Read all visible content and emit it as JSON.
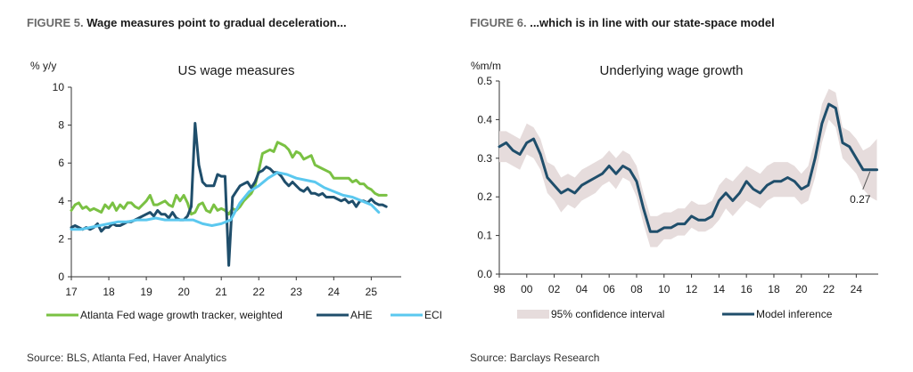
{
  "figures": [
    {
      "number": "FIGURE 5.",
      "title": "Wage measures point to gradual deceleration...",
      "source": "Source: BLS, Atlanta Fed, Haver Analytics"
    },
    {
      "number": "FIGURE 6.",
      "title": "...which is in line with our state-space model",
      "source": "Source: Barclays Research"
    }
  ],
  "colors": {
    "green": "#7ac143",
    "navy": "#1f4e6b",
    "lightblue": "#5bc8ef",
    "band": "#e6dcdc",
    "axis": "#333333"
  },
  "chart_data": [
    {
      "type": "line",
      "title": "US wage measures",
      "ylabel": "% y/y",
      "xlabel": "",
      "xlim": [
        17,
        25.8
      ],
      "ylim": [
        0,
        10
      ],
      "xticks": [
        17,
        18,
        19,
        20,
        21,
        22,
        23,
        24,
        25
      ],
      "xtick_labels": [
        "17",
        "18",
        "19",
        "20",
        "21",
        "22",
        "23",
        "24",
        "25"
      ],
      "yticks": [
        0,
        2,
        4,
        6,
        8,
        10
      ],
      "ytick_labels": [
        "0",
        "2",
        "4",
        "6",
        "8",
        "10"
      ],
      "legend": "bottom",
      "series": [
        {
          "name": "Atlanta Fed wage growth tracker, weighted",
          "color": "#7ac143",
          "x": [
            17.0,
            17.1,
            17.2,
            17.3,
            17.4,
            17.5,
            17.6,
            17.7,
            17.8,
            17.9,
            18.0,
            18.1,
            18.2,
            18.3,
            18.4,
            18.5,
            18.6,
            18.7,
            18.8,
            18.9,
            19.0,
            19.1,
            19.2,
            19.3,
            19.4,
            19.5,
            19.6,
            19.7,
            19.8,
            19.9,
            20.0,
            20.1,
            20.2,
            20.3,
            20.4,
            20.5,
            20.6,
            20.7,
            20.8,
            20.9,
            21.0,
            21.1,
            21.2,
            21.3,
            21.4,
            21.5,
            21.6,
            21.7,
            21.8,
            21.9,
            22.0,
            22.1,
            22.2,
            22.3,
            22.4,
            22.5,
            22.6,
            22.7,
            22.8,
            22.9,
            23.0,
            23.1,
            23.2,
            23.3,
            23.4,
            23.5,
            23.6,
            23.7,
            23.8,
            23.9,
            24.0,
            24.1,
            24.2,
            24.3,
            24.4,
            24.5,
            24.6,
            24.7,
            24.8,
            24.9,
            25.0,
            25.1,
            25.2,
            25.3,
            25.4
          ],
          "y": [
            3.5,
            3.8,
            3.9,
            3.6,
            3.7,
            3.5,
            3.6,
            3.5,
            3.4,
            3.8,
            3.6,
            3.9,
            3.5,
            3.8,
            3.6,
            3.9,
            3.9,
            3.7,
            3.6,
            3.8,
            4.0,
            4.3,
            3.8,
            3.8,
            3.9,
            4.0,
            3.8,
            3.7,
            4.3,
            4.0,
            4.3,
            3.9,
            3.3,
            3.4,
            3.8,
            3.9,
            3.5,
            3.4,
            3.8,
            3.5,
            3.6,
            3.5,
            3.3,
            3.6,
            3.5,
            3.7,
            4.0,
            4.2,
            4.4,
            4.8,
            5.6,
            6.5,
            6.6,
            6.7,
            6.6,
            7.1,
            7.0,
            6.9,
            6.7,
            6.3,
            6.6,
            6.5,
            6.2,
            6.3,
            6.4,
            5.9,
            5.8,
            5.7,
            5.6,
            5.5,
            5.2,
            5.2,
            5.2,
            5.2,
            5.2,
            5.0,
            5.1,
            4.9,
            4.9,
            4.7,
            4.6,
            4.4,
            4.3,
            4.3,
            4.3
          ]
        },
        {
          "name": "AHE",
          "color": "#1f4e6b",
          "x": [
            17.0,
            17.1,
            17.2,
            17.3,
            17.4,
            17.5,
            17.6,
            17.7,
            17.8,
            17.9,
            18.0,
            18.1,
            18.2,
            18.3,
            18.4,
            18.5,
            18.6,
            18.7,
            18.8,
            18.9,
            19.0,
            19.1,
            19.2,
            19.3,
            19.4,
            19.5,
            19.6,
            19.7,
            19.8,
            19.9,
            20.0,
            20.1,
            20.2,
            20.3,
            20.4,
            20.5,
            20.6,
            20.7,
            20.8,
            20.9,
            21.0,
            21.1,
            21.2,
            21.3,
            21.4,
            21.5,
            21.6,
            21.7,
            21.8,
            21.9,
            22.0,
            22.1,
            22.2,
            22.3,
            22.4,
            22.5,
            22.6,
            22.7,
            22.8,
            22.9,
            23.0,
            23.1,
            23.2,
            23.3,
            23.4,
            23.5,
            23.6,
            23.7,
            23.8,
            23.9,
            24.0,
            24.1,
            24.2,
            24.3,
            24.4,
            24.5,
            24.6,
            24.7,
            24.8,
            24.9,
            25.0,
            25.1,
            25.2,
            25.3,
            25.4
          ],
          "y": [
            2.6,
            2.7,
            2.6,
            2.5,
            2.6,
            2.5,
            2.6,
            2.8,
            2.4,
            2.6,
            2.6,
            2.8,
            2.7,
            2.7,
            2.8,
            2.9,
            2.9,
            3.0,
            3.1,
            3.2,
            3.3,
            3.4,
            3.2,
            3.5,
            3.3,
            3.3,
            3.1,
            3.4,
            3.1,
            3.0,
            3.0,
            3.2,
            3.7,
            8.1,
            5.9,
            5.0,
            4.8,
            4.8,
            4.8,
            5.4,
            5.3,
            5.3,
            0.6,
            4.2,
            4.5,
            4.8,
            4.9,
            5.0,
            4.7,
            5.0,
            5.5,
            5.6,
            5.8,
            5.7,
            5.5,
            5.5,
            5.3,
            5.0,
            4.8,
            5.0,
            4.8,
            4.6,
            4.5,
            4.7,
            4.4,
            4.4,
            4.3,
            4.4,
            4.2,
            4.2,
            4.2,
            4.1,
            4.0,
            4.1,
            3.9,
            4.0,
            3.7,
            4.0,
            4.0,
            3.9,
            4.1,
            3.9,
            3.8,
            3.8,
            3.7
          ]
        },
        {
          "name": "ECI",
          "color": "#5bc8ef",
          "x": [
            17.0,
            17.25,
            17.5,
            17.75,
            18.0,
            18.25,
            18.5,
            18.75,
            19.0,
            19.25,
            19.5,
            19.75,
            20.0,
            20.25,
            20.5,
            20.75,
            21.0,
            21.25,
            21.5,
            21.75,
            22.0,
            22.25,
            22.5,
            22.75,
            23.0,
            23.25,
            23.5,
            23.75,
            24.0,
            24.25,
            24.5,
            24.75,
            25.0,
            25.2
          ],
          "y": [
            2.5,
            2.5,
            2.6,
            2.7,
            2.8,
            2.9,
            2.9,
            3.0,
            3.0,
            3.1,
            3.0,
            3.0,
            3.0,
            3.0,
            2.8,
            2.7,
            2.8,
            3.0,
            3.9,
            4.5,
            4.8,
            5.2,
            5.5,
            5.4,
            5.2,
            5.1,
            5.0,
            4.7,
            4.5,
            4.3,
            4.2,
            4.0,
            3.8,
            3.4
          ]
        }
      ]
    },
    {
      "type": "line",
      "title": "Underlying wage growth",
      "ylabel": "%m/m",
      "xlabel": "",
      "xlim": [
        1998,
        2025.6
      ],
      "ylim": [
        0,
        0.5
      ],
      "xticks": [
        1998,
        2000,
        2002,
        2004,
        2006,
        2008,
        2010,
        2012,
        2014,
        2016,
        2018,
        2020,
        2022,
        2024
      ],
      "xtick_labels": [
        "98",
        "00",
        "02",
        "04",
        "06",
        "08",
        "10",
        "12",
        "14",
        "16",
        "18",
        "20",
        "22",
        "24"
      ],
      "yticks": [
        0,
        0.1,
        0.2,
        0.3,
        0.4,
        0.5
      ],
      "ytick_labels": [
        "0.0",
        "0.1",
        "0.2",
        "0.3",
        "0.4",
        "0.5"
      ],
      "legend": "bottom",
      "annotation": {
        "text": "0.27",
        "x": 2025.0,
        "y": 0.27
      },
      "series": [
        {
          "name": "95% confidence interval",
          "color": "#e6dcdc",
          "x": [
            1998.0,
            1998.5,
            1999.0,
            1999.5,
            2000.0,
            2000.5,
            2001.0,
            2001.5,
            2002.0,
            2002.5,
            2003.0,
            2003.5,
            2004.0,
            2004.5,
            2005.0,
            2005.5,
            2006.0,
            2006.5,
            2007.0,
            2007.5,
            2008.0,
            2008.5,
            2009.0,
            2009.5,
            2010.0,
            2010.5,
            2011.0,
            2011.5,
            2012.0,
            2012.5,
            2013.0,
            2013.5,
            2014.0,
            2014.5,
            2015.0,
            2015.5,
            2016.0,
            2016.5,
            2017.0,
            2017.5,
            2018.0,
            2018.5,
            2019.0,
            2019.5,
            2020.0,
            2020.5,
            2021.0,
            2021.5,
            2022.0,
            2022.5,
            2023.0,
            2023.5,
            2024.0,
            2024.5,
            2025.0,
            2025.5
          ],
          "lower": [
            0.29,
            0.29,
            0.28,
            0.27,
            0.31,
            0.3,
            0.27,
            0.21,
            0.19,
            0.16,
            0.18,
            0.17,
            0.19,
            0.2,
            0.21,
            0.23,
            0.24,
            0.22,
            0.25,
            0.24,
            0.2,
            0.13,
            0.07,
            0.07,
            0.09,
            0.09,
            0.1,
            0.1,
            0.12,
            0.11,
            0.11,
            0.12,
            0.14,
            0.17,
            0.15,
            0.17,
            0.19,
            0.18,
            0.17,
            0.19,
            0.2,
            0.2,
            0.2,
            0.2,
            0.18,
            0.19,
            0.25,
            0.34,
            0.4,
            0.38,
            0.3,
            0.28,
            0.26,
            0.22,
            0.2,
            0.19
          ],
          "upper": [
            0.37,
            0.37,
            0.36,
            0.35,
            0.39,
            0.38,
            0.35,
            0.29,
            0.28,
            0.25,
            0.26,
            0.25,
            0.27,
            0.28,
            0.29,
            0.3,
            0.32,
            0.3,
            0.32,
            0.31,
            0.28,
            0.21,
            0.15,
            0.15,
            0.16,
            0.16,
            0.17,
            0.17,
            0.19,
            0.18,
            0.18,
            0.19,
            0.23,
            0.25,
            0.24,
            0.26,
            0.28,
            0.27,
            0.26,
            0.28,
            0.29,
            0.29,
            0.29,
            0.28,
            0.26,
            0.28,
            0.35,
            0.44,
            0.48,
            0.47,
            0.38,
            0.37,
            0.35,
            0.32,
            0.33,
            0.35
          ]
        },
        {
          "name": "Model inference",
          "color": "#1f4e6b",
          "x": [
            1998.0,
            1998.5,
            1999.0,
            1999.5,
            2000.0,
            2000.5,
            2001.0,
            2001.5,
            2002.0,
            2002.5,
            2003.0,
            2003.5,
            2004.0,
            2004.5,
            2005.0,
            2005.5,
            2006.0,
            2006.5,
            2007.0,
            2007.5,
            2008.0,
            2008.5,
            2009.0,
            2009.5,
            2010.0,
            2010.5,
            2011.0,
            2011.5,
            2012.0,
            2012.5,
            2013.0,
            2013.5,
            2014.0,
            2014.5,
            2015.0,
            2015.5,
            2016.0,
            2016.5,
            2017.0,
            2017.5,
            2018.0,
            2018.5,
            2019.0,
            2019.5,
            2020.0,
            2020.5,
            2021.0,
            2021.5,
            2022.0,
            2022.5,
            2023.0,
            2023.5,
            2024.0,
            2024.5,
            2025.0,
            2025.5
          ],
          "y": [
            0.33,
            0.34,
            0.32,
            0.31,
            0.34,
            0.35,
            0.31,
            0.25,
            0.23,
            0.21,
            0.22,
            0.21,
            0.23,
            0.24,
            0.25,
            0.26,
            0.28,
            0.26,
            0.28,
            0.27,
            0.24,
            0.17,
            0.11,
            0.11,
            0.12,
            0.12,
            0.13,
            0.13,
            0.15,
            0.14,
            0.14,
            0.15,
            0.19,
            0.21,
            0.19,
            0.21,
            0.24,
            0.22,
            0.21,
            0.23,
            0.24,
            0.24,
            0.25,
            0.24,
            0.22,
            0.23,
            0.3,
            0.39,
            0.44,
            0.43,
            0.34,
            0.33,
            0.3,
            0.27,
            0.27,
            0.27
          ]
        }
      ]
    }
  ]
}
